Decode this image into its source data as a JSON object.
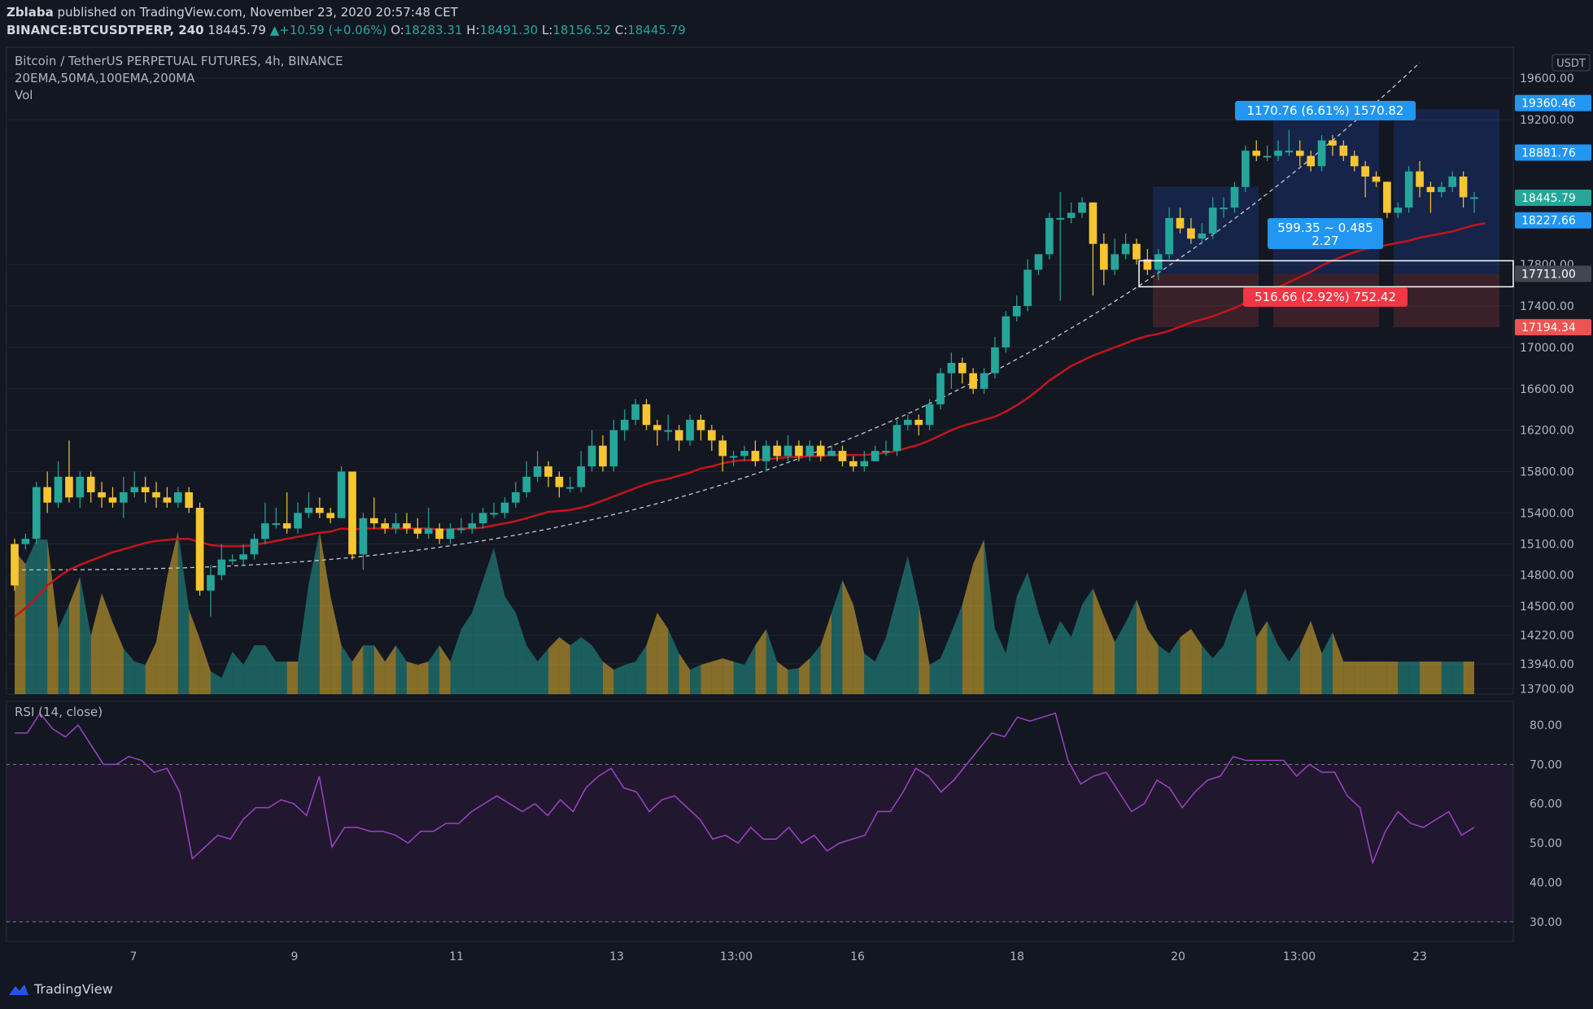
{
  "header": {
    "user": "Zblaba",
    "published": "published on TradingView.com, November 23, 2020 20:57:48 CET",
    "symbol": "BINANCE:BTCUSDTPERP, 240",
    "last": "18445.79",
    "change_icon": "triangle-up-icon",
    "change": "+10.59 (+0.06%)",
    "o_label": "O:",
    "o": "18283.31",
    "h_label": "H:",
    "h": "18491.30",
    "l_label": "L:",
    "l": "18156.52",
    "c_label": "C:",
    "c": "18445.79"
  },
  "legend": {
    "title": "Bitcoin / TetherUS PERPETUAL FUTURES, 4h, BINANCE",
    "indicators": "20EMA,50MA,100EMA,200MA",
    "vol": "Vol",
    "rsi": "RSI (14, close)"
  },
  "footer": {
    "brand": "TradingView",
    "logo_icon": "tradingview-logo-icon"
  },
  "colors": {
    "background": "#131722",
    "up": "#26a69a",
    "down": "#f7c531",
    "ema": "#c4141c",
    "rsi": "#9c42c4",
    "grid": "#1f2430"
  },
  "chart_data": {
    "type": "candlestick",
    "price_axis": {
      "unit": "USDT",
      "ticks": [
        13700,
        13940,
        14220,
        14500,
        14800,
        15100,
        15400,
        15800,
        16200,
        16600,
        17000,
        17400,
        17800,
        19200,
        19600
      ],
      "ylim": [
        13650,
        19900
      ],
      "labels": [
        {
          "value": 19360.46,
          "text": "19360.46",
          "color": "#2196f3"
        },
        {
          "value": 18881.76,
          "text": "18881.76",
          "color": "#2196f3"
        },
        {
          "value": 18445.79,
          "text": "18445.79",
          "color": "#26a69a"
        },
        {
          "value": 18227.66,
          "text": "18227.66",
          "color": "#2196f3"
        },
        {
          "value": 17711.0,
          "text": "17711.00",
          "color": "#434651"
        },
        {
          "value": 17194.34,
          "text": "17194.34",
          "color": "#ef5350"
        }
      ]
    },
    "x_ticks": [
      "7",
      "9",
      "11",
      "13",
      "13:00",
      "16",
      "18",
      "20",
      "13:00",
      "23"
    ],
    "candles": [
      [
        15100,
        14700,
        15150,
        14650
      ],
      [
        15100,
        15150,
        15200,
        15050
      ],
      [
        15150,
        15650,
        15700,
        15100
      ],
      [
        15650,
        15500,
        15800,
        15400
      ],
      [
        15500,
        15750,
        15900,
        15450
      ],
      [
        15750,
        15550,
        16100,
        15500
      ],
      [
        15550,
        15750,
        15800,
        15450
      ],
      [
        15750,
        15600,
        15800,
        15500
      ],
      [
        15600,
        15550,
        15700,
        15450
      ],
      [
        15550,
        15500,
        15650,
        15450
      ],
      [
        15500,
        15600,
        15750,
        15350
      ],
      [
        15600,
        15650,
        15800,
        15550
      ],
      [
        15650,
        15600,
        15750,
        15500
      ],
      [
        15600,
        15550,
        15700,
        15450
      ],
      [
        15550,
        15500,
        15650,
        15450
      ],
      [
        15500,
        15600,
        15650,
        15450
      ],
      [
        15600,
        15450,
        15650,
        15400
      ],
      [
        15450,
        14650,
        15500,
        14600
      ],
      [
        14650,
        14800,
        14900,
        14400
      ],
      [
        14800,
        14950,
        15100,
        14750
      ],
      [
        14950,
        14950,
        15000,
        14900
      ],
      [
        14950,
        15000,
        15100,
        14900
      ],
      [
        15000,
        15150,
        15200,
        14950
      ],
      [
        15150,
        15300,
        15500,
        15100
      ],
      [
        15300,
        15300,
        15450,
        15250
      ],
      [
        15300,
        15250,
        15600,
        15200
      ],
      [
        15250,
        15400,
        15500,
        15200
      ],
      [
        15400,
        15450,
        15600,
        15350
      ],
      [
        15450,
        15400,
        15550,
        15350
      ],
      [
        15400,
        15350,
        15450,
        15300
      ],
      [
        15350,
        15800,
        15850,
        15350
      ],
      [
        15800,
        15000,
        15800,
        14950
      ],
      [
        15000,
        15350,
        15400,
        14850
      ],
      [
        15350,
        15300,
        15550,
        15250
      ],
      [
        15300,
        15250,
        15350,
        15200
      ],
      [
        15250,
        15300,
        15400,
        15200
      ],
      [
        15300,
        15250,
        15400,
        15200
      ],
      [
        15250,
        15200,
        15350,
        15150
      ],
      [
        15200,
        15250,
        15450,
        15150
      ],
      [
        15250,
        15150,
        15300,
        15100
      ],
      [
        15150,
        15250,
        15300,
        15100
      ],
      [
        15250,
        15250,
        15350,
        15200
      ],
      [
        15250,
        15300,
        15400,
        15200
      ],
      [
        15300,
        15400,
        15450,
        15250
      ],
      [
        15400,
        15400,
        15500,
        15350
      ],
      [
        15400,
        15500,
        15550,
        15350
      ],
      [
        15500,
        15600,
        15700,
        15450
      ],
      [
        15600,
        15750,
        15900,
        15550
      ],
      [
        15750,
        15850,
        16000,
        15700
      ],
      [
        15850,
        15750,
        15900,
        15650
      ],
      [
        15750,
        15650,
        15800,
        15550
      ],
      [
        15650,
        15650,
        15750,
        15600
      ],
      [
        15650,
        15850,
        16000,
        15600
      ],
      [
        15850,
        16050,
        16200,
        15800
      ],
      [
        16050,
        15850,
        16150,
        15800
      ],
      [
        15850,
        16200,
        16300,
        15800
      ],
      [
        16200,
        16300,
        16400,
        16100
      ],
      [
        16300,
        16450,
        16500,
        16250
      ],
      [
        16450,
        16250,
        16500,
        16200
      ],
      [
        16250,
        16200,
        16300,
        16050
      ],
      [
        16200,
        16200,
        16350,
        16100
      ],
      [
        16200,
        16100,
        16250,
        16000
      ],
      [
        16100,
        16300,
        16350,
        16050
      ],
      [
        16300,
        16200,
        16350,
        16100
      ],
      [
        16200,
        16100,
        16250,
        16000
      ],
      [
        16100,
        15950,
        16150,
        15800
      ],
      [
        15950,
        15950,
        16000,
        15850
      ],
      [
        15950,
        16000,
        16050,
        15900
      ],
      [
        16000,
        15900,
        16100,
        15850
      ],
      [
        15900,
        16050,
        16100,
        15800
      ],
      [
        16050,
        15950,
        16100,
        15900
      ],
      [
        15950,
        16050,
        16150,
        15900
      ],
      [
        16050,
        15950,
        16100,
        15900
      ],
      [
        15950,
        16050,
        16100,
        15900
      ],
      [
        16050,
        15950,
        16100,
        15900
      ],
      [
        15950,
        16000,
        16050,
        15950
      ],
      [
        16000,
        15900,
        16050,
        15850
      ],
      [
        15900,
        15850,
        15950,
        15800
      ],
      [
        15850,
        15900,
        16000,
        15800
      ],
      [
        15900,
        16000,
        16050,
        15950
      ],
      [
        16000,
        16000,
        16100,
        15950
      ],
      [
        16000,
        16250,
        16300,
        15950
      ],
      [
        16250,
        16300,
        16350,
        16200
      ],
      [
        16300,
        16250,
        16350,
        16150
      ],
      [
        16250,
        16450,
        16500,
        16200
      ],
      [
        16450,
        16750,
        16800,
        16400
      ],
      [
        16750,
        16850,
        16950,
        16600
      ],
      [
        16850,
        16750,
        16900,
        16650
      ],
      [
        16750,
        16600,
        16800,
        16550
      ],
      [
        16600,
        16750,
        16800,
        16550
      ],
      [
        16750,
        17000,
        17100,
        16700
      ],
      [
        17000,
        17300,
        17350,
        16950
      ],
      [
        17300,
        17400,
        17500,
        17250
      ],
      [
        17400,
        17750,
        17850,
        17350
      ],
      [
        17750,
        17900,
        17900,
        17700
      ],
      [
        17900,
        18250,
        18300,
        17850
      ],
      [
        18250,
        18250,
        18500,
        17450
      ],
      [
        18250,
        18300,
        18400,
        18200
      ],
      [
        18300,
        18400,
        18450,
        18250
      ],
      [
        18400,
        18000,
        18400,
        17500
      ],
      [
        18000,
        17750,
        18100,
        17600
      ],
      [
        17750,
        17900,
        18050,
        17700
      ],
      [
        17900,
        18000,
        18100,
        17850
      ],
      [
        18000,
        17850,
        18050,
        17800
      ],
      [
        17850,
        17750,
        17950,
        17700
      ],
      [
        17750,
        17900,
        17950,
        17650
      ],
      [
        17900,
        18250,
        18350,
        17850
      ],
      [
        18250,
        18150,
        18350,
        18100
      ],
      [
        18150,
        18050,
        18250,
        18000
      ],
      [
        18050,
        18100,
        18200,
        18000
      ],
      [
        18100,
        18350,
        18450,
        18050
      ],
      [
        18350,
        18350,
        18450,
        18250
      ],
      [
        18350,
        18550,
        18600,
        18300
      ],
      [
        18550,
        18900,
        18950,
        18500
      ],
      [
        18900,
        18850,
        19000,
        18800
      ],
      [
        18850,
        18850,
        18950,
        18800
      ],
      [
        18850,
        18900,
        19000,
        18800
      ],
      [
        18900,
        18900,
        19100,
        18850
      ],
      [
        18900,
        18850,
        19000,
        18750
      ],
      [
        18850,
        18750,
        18900,
        18700
      ],
      [
        18750,
        19000,
        19050,
        18700
      ],
      [
        19000,
        18950,
        19050,
        18850
      ],
      [
        18950,
        18850,
        19000,
        18800
      ],
      [
        18850,
        18750,
        18900,
        18700
      ],
      [
        18750,
        18650,
        18800,
        18450
      ],
      [
        18650,
        18600,
        18700,
        18550
      ],
      [
        18600,
        18300,
        18600,
        18250
      ],
      [
        18300,
        18350,
        18400,
        18250
      ],
      [
        18350,
        18700,
        18750,
        18300
      ],
      [
        18700,
        18550,
        18800,
        18450
      ],
      [
        18550,
        18500,
        18600,
        18300
      ],
      [
        18500,
        18550,
        18600,
        18450
      ],
      [
        18550,
        18650,
        18700,
        18500
      ],
      [
        18650,
        18450,
        18700,
        18350
      ],
      [
        18450,
        18450,
        18500,
        18300
      ]
    ],
    "ema20": [
      14400,
      14480,
      14580,
      14700,
      14780,
      14850,
      14900,
      14940,
      14980,
      15020,
      15050,
      15080,
      15110,
      15130,
      15140,
      15150,
      15150,
      15120,
      15090,
      15080,
      15080,
      15080,
      15090,
      15110,
      15130,
      15150,
      15170,
      15190,
      15210,
      15220,
      15250,
      15240,
      15250,
      15250,
      15250,
      15250,
      15250,
      15250,
      15250,
      15240,
      15240,
      15250,
      15250,
      15260,
      15280,
      15300,
      15320,
      15350,
      15380,
      15410,
      15420,
      15430,
      15450,
      15480,
      15520,
      15560,
      15600,
      15640,
      15680,
      15710,
      15730,
      15760,
      15790,
      15830,
      15850,
      15880,
      15900,
      15910,
      15910,
      15920,
      15930,
      15940,
      15940,
      15950,
      15950,
      15960,
      15960,
      15960,
      15960,
      15970,
      15980,
      16000,
      16030,
      16060,
      16100,
      16150,
      16200,
      16240,
      16270,
      16300,
      16330,
      16380,
      16440,
      16510,
      16590,
      16680,
      16750,
      16820,
      16870,
      16920,
      16960,
      17000,
      17040,
      17080,
      17110,
      17130,
      17160,
      17200,
      17240,
      17270,
      17300,
      17340,
      17380,
      17430,
      17480,
      17530,
      17580,
      17630,
      17680,
      17730,
      17790,
      17840,
      17880,
      17920,
      17950,
      17970,
      17990,
      18010,
      18030,
      18060,
      18080,
      18100,
      18120,
      18150,
      18180,
      18200
    ],
    "curve": {
      "from": [
        0,
        14850
      ],
      "to": [
        129,
        19750
      ]
    },
    "volume": [
      0.88,
      0.8,
      0.95,
      0.95,
      0.4,
      0.55,
      0.72,
      0.36,
      0.62,
      0.44,
      0.28,
      0.2,
      0.18,
      0.32,
      0.72,
      1.0,
      0.52,
      0.34,
      0.14,
      0.1,
      0.26,
      0.18,
      0.3,
      0.3,
      0.2,
      0.2,
      0.2,
      0.68,
      1.0,
      0.6,
      0.3,
      0.2,
      0.3,
      0.3,
      0.2,
      0.3,
      0.2,
      0.18,
      0.2,
      0.3,
      0.2,
      0.4,
      0.5,
      0.7,
      0.9,
      0.6,
      0.5,
      0.3,
      0.2,
      0.28,
      0.35,
      0.3,
      0.35,
      0.3,
      0.2,
      0.15,
      0.18,
      0.2,
      0.3,
      0.5,
      0.4,
      0.25,
      0.15,
      0.18,
      0.2,
      0.22,
      0.2,
      0.18,
      0.3,
      0.4,
      0.2,
      0.15,
      0.16,
      0.22,
      0.3,
      0.5,
      0.7,
      0.55,
      0.25,
      0.2,
      0.35,
      0.6,
      0.85,
      0.55,
      0.18,
      0.22,
      0.38,
      0.55,
      0.8,
      0.95,
      0.4,
      0.25,
      0.6,
      0.75,
      0.5,
      0.3,
      0.45,
      0.35,
      0.55,
      0.65,
      0.48,
      0.32,
      0.44,
      0.58,
      0.4,
      0.3,
      0.25,
      0.35,
      0.4,
      0.3,
      0.22,
      0.3,
      0.5,
      0.65,
      0.35,
      0.45,
      0.3,
      0.2,
      0.3,
      0.45,
      0.25,
      0.38
    ],
    "rsi": {
      "ticks": [
        30,
        40,
        50,
        60,
        70,
        80
      ],
      "ylim": [
        25,
        86
      ],
      "overbought": 70,
      "oversold": 30,
      "values": [
        78,
        78,
        83,
        79,
        77,
        80,
        75,
        70,
        70,
        72,
        71,
        68,
        69,
        63,
        46,
        49,
        52,
        51,
        56,
        59,
        59,
        61,
        60,
        57,
        67,
        49,
        54,
        54,
        53,
        53,
        52,
        50,
        53,
        53,
        55,
        55,
        58,
        60,
        62,
        60,
        58,
        60,
        57,
        61,
        58,
        64,
        67,
        69,
        64,
        63,
        58,
        61,
        62,
        59,
        56,
        51,
        52,
        50,
        54,
        51,
        51,
        54,
        50,
        52,
        48,
        50,
        51,
        52,
        58,
        58,
        63,
        69,
        67,
        63,
        66,
        70,
        74,
        78,
        77,
        82,
        81,
        82,
        83,
        71,
        65,
        67,
        68,
        63,
        58,
        60,
        66,
        64,
        59,
        63,
        66,
        67,
        72,
        71,
        71,
        71,
        71,
        67,
        70,
        68,
        68,
        62,
        59,
        45,
        53,
        58,
        55,
        54,
        56,
        58,
        52,
        54
      ]
    }
  },
  "annotations": {
    "target_label": "1170.76 (6.61%) 1570.82",
    "ratio_label": "599.35 ~ 0.485",
    "ratio_label2": "2.27",
    "stop_label": "516.66 (2.92%) 752.42",
    "currency_badge": "USDT"
  }
}
